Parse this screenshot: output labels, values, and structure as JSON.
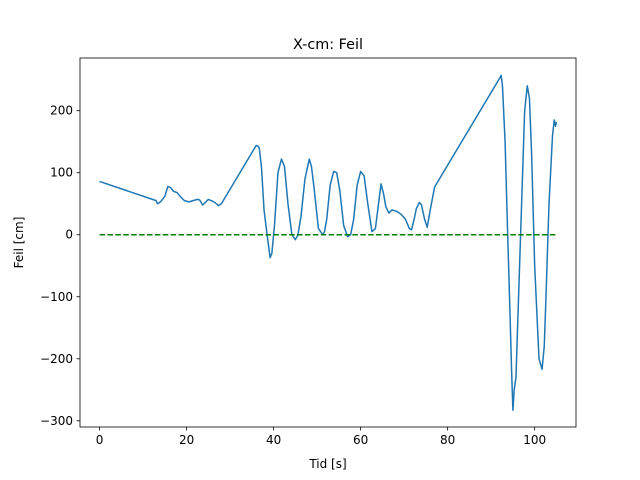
{
  "chart_data": {
    "type": "line",
    "title": "X-cm: Feil",
    "xlabel": "Tid [s]",
    "ylabel": "Feil [cm]",
    "xlim": [
      -4.5,
      109.5
    ],
    "ylim": [
      -310,
      285
    ],
    "xticks": [
      0,
      20,
      40,
      60,
      80,
      100
    ],
    "yticks": [
      -300,
      -200,
      -100,
      0,
      100,
      200
    ],
    "grid": false,
    "series": [
      {
        "color": "#1f77b4",
        "style": "solid",
        "x": [
          0,
          13,
          13.3,
          14,
          15,
          15.7,
          16.3,
          17,
          17.8,
          18.5,
          19.5,
          20.5,
          21.5,
          22.5,
          23,
          23.7,
          24.3,
          25,
          25.7,
          26.5,
          27.3,
          28,
          36,
          36.4,
          36.7,
          37.2,
          37.8,
          38.5,
          39.2,
          39.6,
          40.2,
          41,
          41.8,
          42.5,
          43.3,
          44.2,
          45,
          45.6,
          46.3,
          47.2,
          48.2,
          48.7,
          49.3,
          50.3,
          51.3,
          51.7,
          52.2,
          53,
          53.8,
          54.5,
          55.2,
          56.1,
          57,
          57.7,
          58.4,
          59.2,
          60,
          60.8,
          61.6,
          62.6,
          63.4,
          64.2,
          64.7,
          65.3,
          65.8,
          66.5,
          67.2,
          68.2,
          69.3,
          70.3,
          71.2,
          71.7,
          72.3,
          72.8,
          73.5,
          74,
          74.7,
          75.3,
          76,
          77,
          92,
          92.3,
          92.6,
          93.2,
          93.8,
          94.3,
          94.7,
          95,
          95.3,
          95.7,
          96.3,
          97,
          97.7,
          98.3,
          98.8,
          99.3,
          100,
          101,
          101.7,
          102.2,
          102.6,
          103.3,
          104.1,
          104.5,
          104.8,
          105
        ],
        "y": [
          86,
          55,
          50,
          53,
          62,
          78,
          76,
          70,
          68,
          62,
          55,
          53,
          55,
          57,
          56,
          48,
          52,
          57,
          55,
          52,
          47,
          50,
          144,
          143,
          140,
          110,
          40,
          0,
          -37,
          -30,
          15,
          100,
          122,
          110,
          50,
          0,
          -8,
          0,
          30,
          90,
          122,
          110,
          75,
          10,
          0,
          5,
          25,
          80,
          102,
          100,
          72,
          15,
          -3,
          0,
          25,
          80,
          102,
          95,
          52,
          5,
          10,
          55,
          82,
          65,
          45,
          35,
          40,
          38,
          33,
          25,
          10,
          8,
          25,
          42,
          52,
          48,
          25,
          12,
          40,
          77,
          253,
          257,
          240,
          150,
          0,
          -120,
          -220,
          -283,
          -250,
          -230,
          -100,
          50,
          200,
          240,
          220,
          130,
          -50,
          -200,
          -217,
          -180,
          -100,
          50,
          160,
          185,
          175,
          182
        ]
      },
      {
        "color": "#008000",
        "style": "dashed",
        "x": [
          0,
          105
        ],
        "y": [
          0,
          0
        ]
      }
    ]
  }
}
